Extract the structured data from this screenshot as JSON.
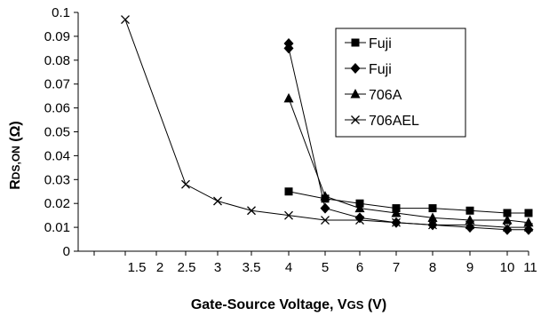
{
  "chart_data": {
    "type": "line",
    "title": "",
    "xlabel": "Gate-Source Voltage, V",
    "xlabel_sub": "GS",
    "xlabel_unit": " (V)",
    "ylabel": "R",
    "ylabel_sub": "DS,ON",
    "ylabel_unit": " (Ω)",
    "x_ticks": [
      "1.5",
      "2",
      "2.5",
      "3",
      "3.5",
      "4",
      "4",
      "5",
      "6",
      "7",
      "8",
      "9",
      "10",
      "11"
    ],
    "y_ticks": [
      "0",
      "0.01",
      "0.02",
      "0.03",
      "0.04",
      "0.05",
      "0.06",
      "0.07",
      "0.08",
      "0.09",
      "0.1"
    ],
    "ylim": [
      0,
      0.1
    ],
    "grid": false,
    "legend_position": "top-right",
    "series": [
      {
        "name": "Fuji",
        "marker": "square",
        "points": [
          [
            4,
            0.025
          ],
          [
            5,
            0.022
          ],
          [
            6,
            0.02
          ],
          [
            7,
            0.018
          ],
          [
            8,
            0.018
          ],
          [
            9,
            0.017
          ],
          [
            10,
            0.016
          ],
          [
            11,
            0.016
          ]
        ]
      },
      {
        "name": "Fuji",
        "marker": "diamond",
        "points": [
          [
            4,
            0.087
          ],
          [
            4,
            0.085
          ],
          [
            5,
            0.018
          ],
          [
            6,
            0.014
          ],
          [
            7,
            0.012
          ],
          [
            8,
            0.011
          ],
          [
            9,
            0.01
          ],
          [
            10,
            0.009
          ],
          [
            11,
            0.009
          ]
        ]
      },
      {
        "name": "706A",
        "marker": "triangle",
        "points": [
          [
            4,
            0.064
          ],
          [
            5,
            0.023
          ],
          [
            6,
            0.018
          ],
          [
            7,
            0.016
          ],
          [
            8,
            0.014
          ],
          [
            9,
            0.013
          ],
          [
            10,
            0.013
          ],
          [
            11,
            0.012
          ]
        ]
      },
      {
        "name": "706AEL",
        "marker": "x",
        "points": [
          [
            2,
            0.097
          ],
          [
            2.5,
            0.028
          ],
          [
            3,
            0.021
          ],
          [
            3.5,
            0.017
          ],
          [
            4,
            0.015
          ],
          [
            5,
            0.013
          ],
          [
            6,
            0.013
          ],
          [
            7,
            0.012
          ],
          [
            8,
            0.011
          ],
          [
            9,
            0.011
          ],
          [
            10,
            0.01
          ],
          [
            11,
            0.01
          ]
        ]
      }
    ]
  }
}
